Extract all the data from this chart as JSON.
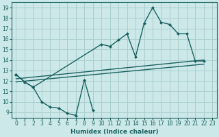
{
  "xlabel": "Humidex (Indice chaleur)",
  "bg_color": "#cce8e8",
  "grid_color": "#aacece",
  "line_color": "#1a6060",
  "xlim": [
    -0.5,
    23.5
  ],
  "ylim": [
    8.5,
    19.5
  ],
  "xticks": [
    0,
    1,
    2,
    3,
    4,
    5,
    6,
    7,
    8,
    9,
    10,
    11,
    12,
    13,
    14,
    15,
    16,
    17,
    18,
    19,
    20,
    21,
    22,
    23
  ],
  "yticks": [
    9,
    10,
    11,
    12,
    13,
    14,
    15,
    16,
    17,
    18,
    19
  ],
  "curve_upper_x": [
    0,
    1,
    2,
    10,
    11,
    12,
    13,
    14,
    15,
    16,
    17,
    18,
    19,
    20,
    21,
    22
  ],
  "curve_upper_y": [
    12.6,
    11.9,
    11.4,
    15.5,
    15.3,
    15.9,
    16.5,
    14.3,
    17.5,
    19.0,
    17.6,
    17.4,
    16.5,
    16.5,
    13.9,
    13.9
  ],
  "curve_lower_x": [
    0,
    1,
    2,
    3,
    4,
    5,
    6,
    7,
    8,
    9
  ],
  "curve_lower_y": [
    12.6,
    11.9,
    11.4,
    10.0,
    9.5,
    9.4,
    8.9,
    8.7,
    12.1,
    9.2
  ],
  "trend1_x": [
    0,
    22
  ],
  "trend1_y": [
    12.2,
    14.0
  ],
  "trend2_x": [
    0,
    22
  ],
  "trend2_y": [
    11.9,
    13.6
  ]
}
